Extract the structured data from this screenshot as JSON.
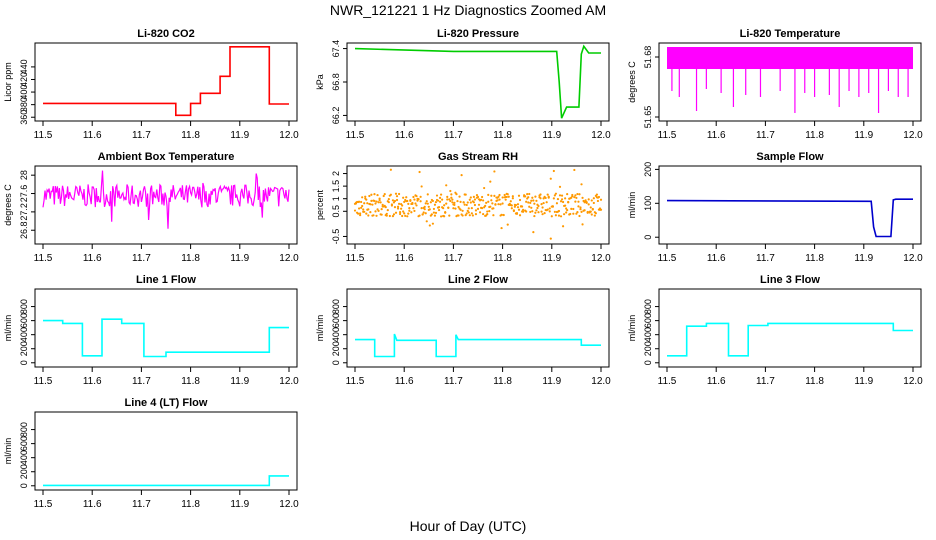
{
  "figure": {
    "title": "NWR_121221  1 Hz Diagnostics Zoomed AM",
    "xlabel": "Hour of Day (UTC)"
  },
  "chart_data": [
    {
      "type": "line",
      "title": "Li-820 CO2",
      "ylabel": "Licor ppm",
      "color": "#ff0000",
      "xlim": [
        11.5,
        12.0
      ],
      "ylim": [
        354,
        478
      ],
      "xticks": [
        "11.5",
        "11.6",
        "11.7",
        "11.8",
        "11.9",
        "12.0"
      ],
      "yticks": [
        360,
        380,
        400,
        420,
        440
      ],
      "x": [
        11.5,
        11.77,
        11.77,
        11.8,
        11.8,
        11.82,
        11.82,
        11.86,
        11.86,
        11.88,
        11.88,
        11.96,
        11.96,
        12.0
      ],
      "y": [
        382,
        382,
        363,
        363,
        382,
        382,
        398,
        398,
        425,
        425,
        472,
        472,
        381,
        381
      ]
    },
    {
      "type": "line",
      "title": "Li-820 Pressure",
      "ylabel": "kPa",
      "color": "#00cc00",
      "xlim": [
        11.5,
        12.0
      ],
      "ylim": [
        66.1,
        67.5
      ],
      "xticks": [
        "11.5",
        "11.6",
        "11.7",
        "11.8",
        "11.9",
        "12.0"
      ],
      "yticks": [
        66.2,
        66.8,
        67.4
      ],
      "x": [
        11.5,
        11.7,
        11.91,
        11.915,
        11.92,
        11.93,
        11.955,
        11.96,
        11.965,
        11.975,
        12.0
      ],
      "y": [
        67.4,
        67.35,
        67.35,
        66.8,
        66.15,
        66.35,
        66.35,
        67.3,
        67.44,
        67.32,
        67.32
      ]
    },
    {
      "type": "line",
      "title": "Li-820 Temperature",
      "ylabel": "degrees C",
      "color": "#ff00ff",
      "xlim": [
        11.5,
        12.0
      ],
      "ylim": [
        51.648,
        51.687
      ],
      "xticks": [
        "11.5",
        "11.6",
        "11.7",
        "11.8",
        "11.9",
        "12.0"
      ],
      "yticks": [
        51.65,
        51.68
      ],
      "levels": [
        51.674,
        51.685
      ],
      "dips_x": [
        11.51,
        11.525,
        11.56,
        11.58,
        11.61,
        11.635,
        11.66,
        11.69,
        11.73,
        11.76,
        11.78,
        11.8,
        11.83,
        11.85,
        11.87,
        11.89,
        11.91,
        11.93,
        11.95,
        11.97,
        11.99
      ],
      "dips_y": [
        51.663,
        51.66,
        51.653,
        51.664,
        51.662,
        51.655,
        51.661,
        51.66,
        51.663,
        51.652,
        51.662,
        51.66,
        51.661,
        51.655,
        51.663,
        51.66,
        51.662,
        51.652,
        51.663,
        51.66,
        51.66
      ]
    },
    {
      "type": "line",
      "title": "Ambient Box Temperature",
      "ylabel": "degrees C",
      "color": "#ff00ff",
      "xlim": [
        11.5,
        12.0
      ],
      "ylim": [
        26.5,
        28.2
      ],
      "xticks": [
        "11.5",
        "11.6",
        "11.7",
        "11.8",
        "11.9",
        "12.0"
      ],
      "yticks": [
        26.8,
        27.2,
        27.6,
        28.0
      ],
      "mean": 27.55,
      "noise": 0.5,
      "min": 26.65,
      "max": 28.1
    },
    {
      "type": "scatter",
      "title": "Gas Stream RH",
      "ylabel": "percent",
      "color": "#ff9900",
      "xlim": [
        11.5,
        12.0
      ],
      "ylim": [
        -0.8,
        2.3
      ],
      "xticks": [
        "11.5",
        "11.6",
        "11.7",
        "11.8",
        "11.9",
        "12.0"
      ],
      "yticks": [
        -0.5,
        0.5,
        1.0,
        1.5,
        2.0
      ],
      "mean": 0.75,
      "noise": 0.9,
      "min": -0.7,
      "max": 2.2
    },
    {
      "type": "line",
      "title": "Sample Flow",
      "ylabel": "ml/min",
      "color": "#0000cc",
      "xlim": [
        11.5,
        12.0
      ],
      "ylim": [
        -20,
        210
      ],
      "xticks": [
        "11.5",
        "11.6",
        "11.7",
        "11.8",
        "11.9",
        "12.0"
      ],
      "yticks": [
        0,
        100,
        200
      ],
      "x": [
        11.5,
        11.915,
        11.92,
        11.925,
        11.955,
        11.96,
        11.965,
        12.0
      ],
      "y": [
        108,
        106,
        30,
        2,
        2,
        110,
        112,
        112
      ]
    },
    {
      "type": "line",
      "title": "Line 1 Flow",
      "ylabel": "ml/min",
      "color": "#00ffff",
      "xlim": [
        11.5,
        12.0
      ],
      "ylim": [
        -60,
        1050
      ],
      "xticks": [
        "11.5",
        "11.6",
        "11.7",
        "11.8",
        "11.9",
        "12.0"
      ],
      "yticks": [
        0,
        200,
        400,
        600,
        800
      ],
      "x": [
        11.5,
        11.54,
        11.54,
        11.58,
        11.58,
        11.62,
        11.62,
        11.66,
        11.66,
        11.705,
        11.705,
        11.75,
        11.75,
        11.96,
        11.96,
        12.0
      ],
      "y": [
        600,
        600,
        560,
        560,
        100,
        100,
        620,
        620,
        560,
        560,
        90,
        90,
        150,
        150,
        500,
        500
      ]
    },
    {
      "type": "line",
      "title": "Line 2 Flow",
      "ylabel": "ml/min",
      "color": "#00ffff",
      "xlim": [
        11.5,
        12.0
      ],
      "ylim": [
        -60,
        1050
      ],
      "xticks": [
        "11.5",
        "11.6",
        "11.7",
        "11.8",
        "11.9",
        "12.0"
      ],
      "yticks": [
        0,
        200,
        400,
        600,
        800
      ],
      "x": [
        11.5,
        11.54,
        11.54,
        11.58,
        11.58,
        11.585,
        11.59,
        11.665,
        11.665,
        11.705,
        11.705,
        11.71,
        11.715,
        11.96,
        11.96,
        12.0
      ],
      "y": [
        330,
        330,
        90,
        90,
        410,
        320,
        320,
        320,
        90,
        90,
        400,
        330,
        330,
        330,
        250,
        250
      ]
    },
    {
      "type": "line",
      "title": "Line 3 Flow",
      "ylabel": "ml/min",
      "color": "#00ffff",
      "xlim": [
        11.5,
        12.0
      ],
      "ylim": [
        -60,
        1050
      ],
      "xticks": [
        "11.5",
        "11.6",
        "11.7",
        "11.8",
        "11.9",
        "12.0"
      ],
      "yticks": [
        0,
        200,
        400,
        600,
        800
      ],
      "x": [
        11.5,
        11.54,
        11.54,
        11.58,
        11.58,
        11.625,
        11.625,
        11.665,
        11.665,
        11.705,
        11.705,
        11.96,
        11.96,
        12.0
      ],
      "y": [
        100,
        100,
        520,
        520,
        560,
        560,
        100,
        100,
        530,
        530,
        560,
        560,
        460,
        460
      ]
    },
    {
      "type": "line",
      "title": "Line 4 (LT) Flow",
      "ylabel": "ml/min",
      "color": "#00ffff",
      "xlim": [
        11.5,
        12.0
      ],
      "ylim": [
        -60,
        1050
      ],
      "xticks": [
        "11.5",
        "11.6",
        "11.7",
        "11.8",
        "11.9",
        "12.0"
      ],
      "yticks": [
        0,
        200,
        400,
        600,
        800
      ],
      "x": [
        11.5,
        11.96,
        11.96,
        12.0
      ],
      "y": [
        5,
        5,
        140,
        140
      ]
    }
  ]
}
